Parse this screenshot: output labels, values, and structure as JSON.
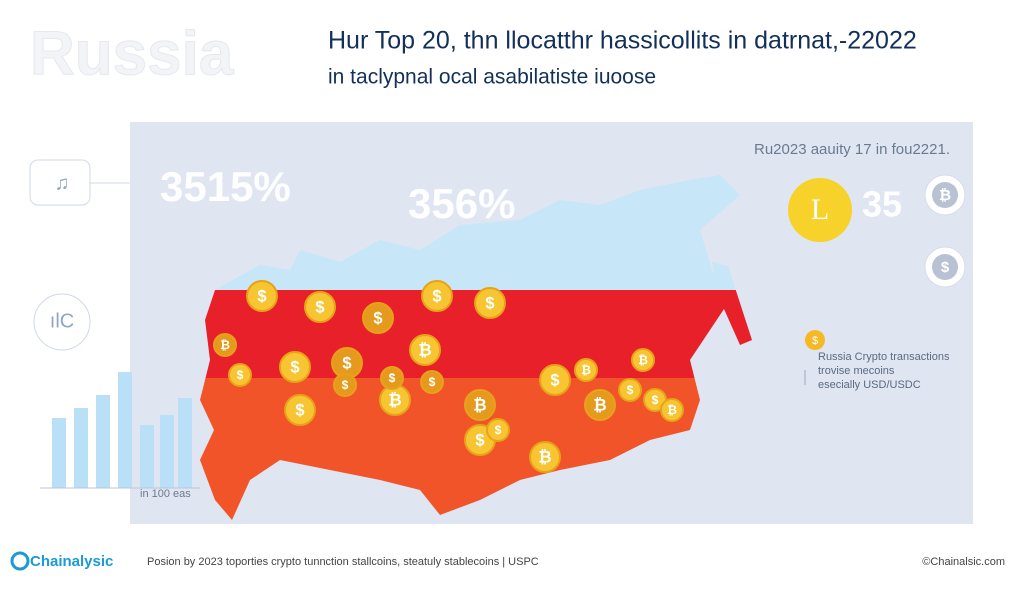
{
  "header": {
    "watermark": "Russia",
    "title": "Hur Top  20, thn llocatthr hassicollits in datrnat,-22022",
    "subtitle": "in taclypnal ocal asabilatiste iuoose"
  },
  "panel": {
    "note": "Ru2023 aauity 17 in fou2221.",
    "stat_left": "3515%",
    "stat_center": "356%",
    "big_coin": "L",
    "stat_right": "35",
    "right_coins": [
      "₿",
      "$"
    ],
    "left_icons": [
      "♫",
      "ılC"
    ],
    "legend_coin": "$",
    "legend": [
      "Russia Crypto transactions",
      "trovise mecoins",
      "esecially USD/USDC"
    ],
    "chart_caption": "in 100 eas"
  },
  "map": {
    "coins": [
      "$",
      "$",
      "$",
      "$",
      "$",
      "₿",
      "₿",
      "$",
      "$",
      "₿",
      "$",
      "$",
      "₿",
      "$",
      "₿",
      "$",
      "$",
      "₿",
      "$",
      "₿",
      "$",
      "₿",
      "$",
      "$",
      "$",
      "₿"
    ]
  },
  "footer": {
    "brand": "Chainalysic",
    "text": "Posion by 2023 toporties crypto tunnction stallcoins, steatuly stablecoins | USPC",
    "copyright": "©Chainalsic.com"
  }
}
